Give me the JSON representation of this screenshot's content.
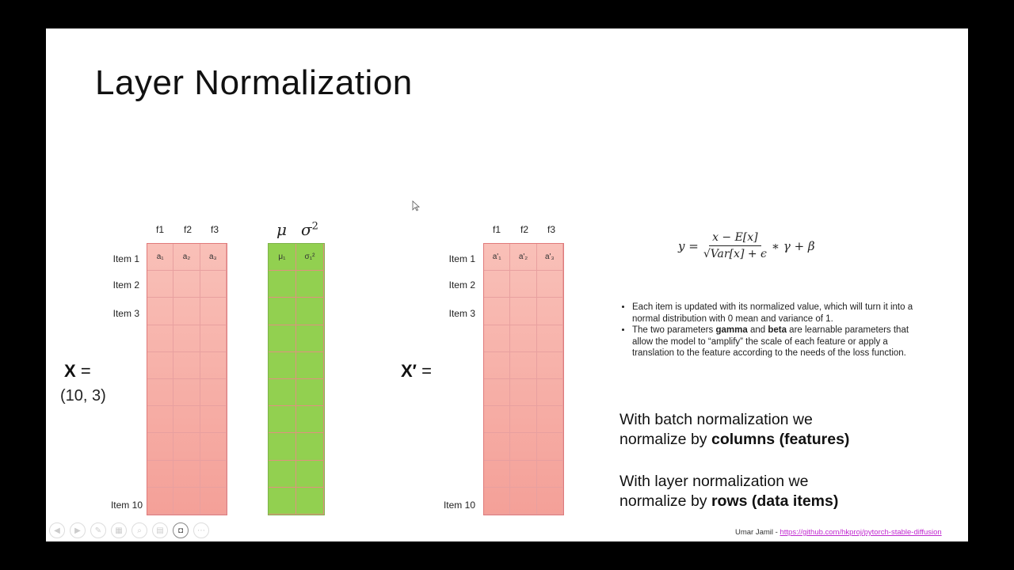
{
  "title": "Layer Normalization",
  "left_matrix": {
    "columns": [
      "f1",
      "f2",
      "f3"
    ],
    "rows": [
      "Item 1",
      "Item 2",
      "Item 3",
      "",
      "",
      "",
      "",
      "",
      "",
      "Item 10"
    ],
    "first_row_cells": [
      "a₁",
      "a₂",
      "a₃"
    ],
    "label": "X",
    "equals": "=",
    "shape": "(10, 3)"
  },
  "stats": {
    "mu": "μ",
    "sigma": "σ",
    "sigma_sup": "2",
    "first_row_cells": [
      "μ₁",
      "σ₁²"
    ]
  },
  "right_matrix": {
    "columns": [
      "f1",
      "f2",
      "f3"
    ],
    "rows": [
      "Item 1",
      "Item 2",
      "Item 3",
      "",
      "",
      "",
      "",
      "",
      "",
      "Item 10"
    ],
    "first_row_cells": [
      "a'₁",
      "a'₂",
      "a'₃"
    ],
    "label": "X′",
    "equals": "="
  },
  "formula": {
    "lhs": "y =",
    "numerator": "x − E[x]",
    "denominator": "√Var[x] + ϵ",
    "rhs": "∗ γ + β"
  },
  "bullets": [
    "Each item is updated with its normalized value, which will turn it into a normal distribution with 0 mean and variance of 1.",
    "The two parameters gamma and beta are learnable parameters that allow the model to “amplify” the scale of each feature or apply a translation to the feature according to the needs of the loss function."
  ],
  "bullet2_parts": {
    "pre": "The two parameters ",
    "gamma": "gamma",
    "and": " and ",
    "beta": "beta",
    "post": " are learnable parameters that allow the model to “amplify” the scale of each feature or apply a translation to the feature according to the needs of the loss function."
  },
  "batch_note": {
    "line1": "With batch normalization we",
    "line2_pre": "normalize by ",
    "line2_bold": "columns (features)"
  },
  "layer_note": {
    "line1": "With layer normalization we",
    "line2_pre": "normalize by ",
    "line2_bold": "rows (data items)"
  },
  "footer": {
    "author": "Umar Jamil - ",
    "link": "https://github.com/hkproj/pytorch-stable-diffusion"
  },
  "toolbar": [
    "prev-icon",
    "next-icon",
    "pen-icon",
    "slides-icon",
    "zoom-icon",
    "subtitles-icon",
    "camera-icon",
    "more-icon"
  ],
  "colors": {
    "matrix_red_top": "#f9c0b8",
    "matrix_red_bottom": "#f4a098",
    "stats_green": "#92d050",
    "link": "#c02ad0"
  }
}
